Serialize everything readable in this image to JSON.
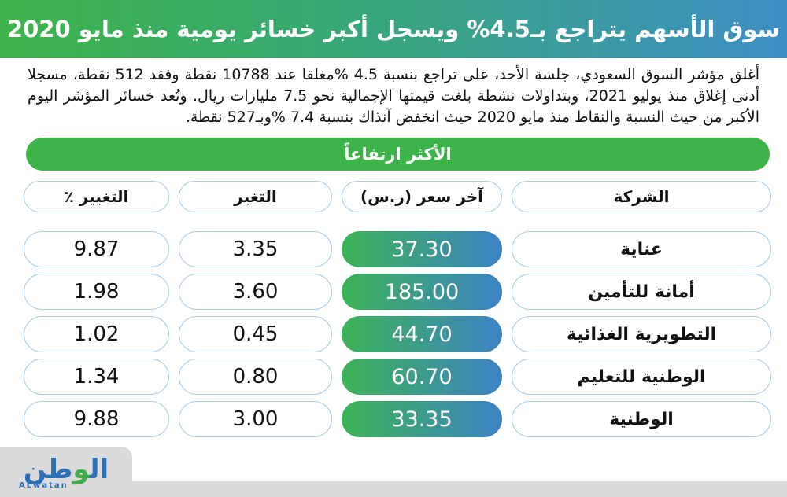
{
  "masthead": {
    "title": "سوق الأسهم يتراجع بـ4.5% ويسجل أكبر خسائر يومية منذ مايو 2020",
    "gradient_left_color": "#3eb44a",
    "gradient_right_color": "#3e8ec5"
  },
  "intro": {
    "text": "أغلق مؤشر السوق السعودي، جلسة الأحد، على تراجع بنسبة 4.5 %مغلقا عند 10788 نقطة وفقد 512 نقطة، مسجلا أدنى إغلاق منذ يوليو 2021، وبتداولات نشطة بلغت قيمتها الإجمالية نحو 7.5 مليارات ريال. وتُعد خسائر المؤشر اليوم الأكبر من حيث النسبة والنقاط منذ مايو 2020 حيث انخفض آنذاك بنسبة 7.4 %وبـ527 نقطة."
  },
  "banner": {
    "label": "الأكثر ارتفاعاً",
    "color": "#3cb44a"
  },
  "table": {
    "headers": {
      "company": "الشركة",
      "price": "آخر سعر (ر.س)",
      "change": "التغير",
      "change_pct": "التغيير ٪"
    },
    "rows": [
      {
        "company": "عناية",
        "price": "37.30",
        "change": "3.35",
        "change_pct": "9.87"
      },
      {
        "company": "أمانة للتأمين",
        "price": "185.00",
        "change": "3.60",
        "change_pct": "1.98"
      },
      {
        "company": "التطويرية الغذائية",
        "price": "44.70",
        "change": "0.45",
        "change_pct": "1.02"
      },
      {
        "company": "الوطنية للتعليم",
        "price": "60.70",
        "change": "0.80",
        "change_pct": "1.34"
      },
      {
        "company": "الوطنية",
        "price": "33.35",
        "change": "3.00",
        "change_pct": "9.88"
      }
    ],
    "price_pill_gradient": [
      "#3db456",
      "#3c82c4"
    ],
    "pill_border_color": "#a7cdeb"
  },
  "footer": {
    "logo_part_1": "ال",
    "logo_part_2": "و",
    "logo_part_3": "طن",
    "logo_latin": "ALwatan",
    "logo_blue": "#2c70b8",
    "logo_green": "#3fae49",
    "strip_color": "#dbdbdb"
  }
}
